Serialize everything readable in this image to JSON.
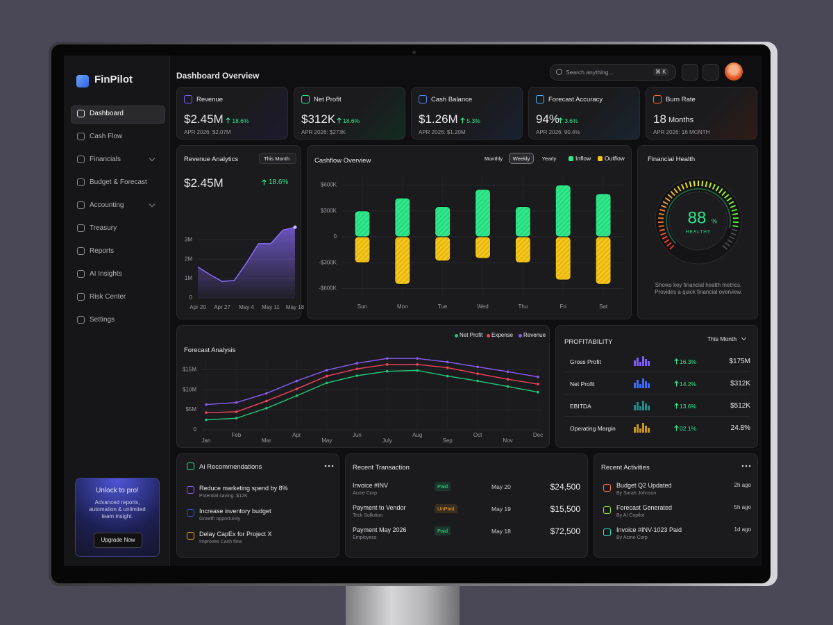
{
  "sidebar": {
    "brand": "FinPilot",
    "nav": [
      "Dashboard",
      "Cash Flow",
      "Financials",
      "Budget & Forecast",
      "Accounting",
      "Treasury",
      "Reports",
      "AI Insights",
      "Risk Center",
      "Settings"
    ],
    "promo": {
      "title": "Unlock to pro!",
      "text": "Advanced reports, automation & unlimited team insight.",
      "button": "Upgrade Now"
    }
  },
  "header": {
    "title": "Dashboard Overview",
    "search": "Search anything...",
    "shortcut": "⌘ K"
  },
  "kpis": [
    {
      "label": "Revenue",
      "value": "$2.45M",
      "change": "18.6%",
      "sub": "APR 2026: $2.07M",
      "color": "#7c5cff"
    },
    {
      "label": "Net Profit",
      "value": "$312K",
      "change": "18.6%",
      "sub": "APR 2026: $273K",
      "color": "#2ee88a"
    },
    {
      "label": "Cash Balance",
      "value": "$1.26M",
      "change": "5.3%",
      "sub": "APR 2026: $1.20M",
      "color": "#4f8cff"
    },
    {
      "label": "Forecast Accuracy",
      "value": "94%",
      "change": "3.6%",
      "sub": "APR 2026: 90.4%",
      "color": "#4fb3ff"
    },
    {
      "label": "Burn Rate",
      "value": "18",
      "unit": "Months",
      "sub": "APR 2026: 16 MONTH",
      "color": "#ff6a3d"
    }
  ],
  "revenue_analytics": {
    "title": "Revenue Analytics",
    "period": "This Month",
    "value": "$2.45M",
    "change": "18.6%",
    "chart": {
      "type": "area",
      "color": "#8b6cff",
      "categories": [
        "Apr 20",
        null,
        "Apr 27",
        null,
        "May 4",
        null,
        "May 11",
        null,
        "May 18"
      ],
      "values": [
        1.6,
        1.2,
        0.85,
        0.9,
        1.8,
        2.8,
        2.8,
        3.5,
        3.65
      ],
      "ylim": [
        0,
        3.8
      ],
      "yticks": [
        0,
        {
          "value": 1,
          "label": "1M"
        },
        {
          "value": 2,
          "label": "2M"
        },
        {
          "value": 3,
          "label": "3M"
        }
      ]
    }
  },
  "cashflow": {
    "title": "Cashflow Overview",
    "tabs": [
      "Monthly",
      "Weekly",
      "Yearly"
    ],
    "active_tab": 1,
    "chart": {
      "type": "bar",
      "categories": [
        "Sun",
        "Mon",
        "Tue",
        "Wed",
        "Thu",
        "Fri",
        "Sat"
      ],
      "series": [
        {
          "name": "Inflow",
          "color": "#2ee88a",
          "values": [
            300,
            450,
            350,
            550,
            350,
            600,
            500
          ]
        },
        {
          "name": "Outflow",
          "color": "#f5c518",
          "values": [
            -300,
            -550,
            -280,
            -250,
            -300,
            -500,
            -550
          ]
        }
      ],
      "ylim": [
        -700,
        700
      ],
      "yticks": [
        {
          "value": 600,
          "label": "$600K"
        },
        {
          "value": 300,
          "label": "$300K"
        },
        0,
        {
          "value": -300,
          "label": "-$300K"
        },
        {
          "value": -600,
          "label": "-$600K"
        }
      ],
      "grid": true
    }
  },
  "health": {
    "title": "Financial Health",
    "score": 88,
    "unit": "%",
    "status": "HEALTHY",
    "lim": [
      0,
      100
    ],
    "description": "Shows key financial health metrics. Provides a quick financial overview."
  },
  "forecast": {
    "title": "Forecast Analysis",
    "chart": {
      "type": "line",
      "categories": [
        "Jan",
        "Feb",
        "Mar",
        "Apr",
        "May",
        "Jun",
        "July",
        "Aug",
        "Sep",
        "Oct",
        "Nov",
        "Dec"
      ],
      "series": [
        {
          "name": "Net Profit",
          "color": "#22c77a",
          "values": [
            2.5,
            2.9,
            5.4,
            8.5,
            11.7,
            13.5,
            14.6,
            14.8,
            13.4,
            12.2,
            10.8,
            9.4
          ]
        },
        {
          "name": "Expense",
          "color": "#f0445a",
          "values": [
            4.3,
            4.5,
            7.2,
            10.2,
            13.4,
            15.2,
            16.3,
            16.3,
            15.5,
            14,
            12.6,
            11.4
          ]
        },
        {
          "name": "Revenue",
          "color": "#8b5cf6",
          "values": [
            6.3,
            6.8,
            9.1,
            12.2,
            14.9,
            16.6,
            17.8,
            17.8,
            16.9,
            15.7,
            14.5,
            13.2
          ]
        }
      ],
      "ylim": [
        0,
        18
      ],
      "yticks": [
        0,
        {
          "value": 5,
          "label": "$5M"
        },
        {
          "value": 10,
          "label": "$10M"
        },
        {
          "value": 15,
          "label": "$15M"
        }
      ],
      "grid": true
    }
  },
  "profitability": {
    "title": "PROFITABILITY",
    "period": "This Month",
    "rows": [
      {
        "name": "Gross Profit",
        "change": "16.3%",
        "value": "$175M",
        "color": "#7c5cff"
      },
      {
        "name": "Net Profit",
        "change": "14.2%",
        "value": "$312K",
        "color": "#3b6cff"
      },
      {
        "name": "EBITDA",
        "change": "13.6%",
        "value": "$512K",
        "color": "#1f8a8a"
      },
      {
        "name": "Operating Margin",
        "change": "02.1%",
        "value": "24.8%",
        "color": "#c9961a"
      }
    ]
  },
  "ai": {
    "title": "Ai Recommendations",
    "items": [
      {
        "title": "Reduce marketing spend by 8%",
        "sub": "Potential saving: $12K",
        "color": "#8b5cf6"
      },
      {
        "title": "Increase inventory budget",
        "sub": "Growth opportunity",
        "color": "#3b4fd8"
      },
      {
        "title": "Delay CapEx for Project X",
        "sub": "Improves Cash flow",
        "color": "#f5a524"
      }
    ]
  },
  "transactions": {
    "title": "Recent Transaction",
    "rows": [
      {
        "name": "Invoice #INV",
        "sub": "Acme Corp",
        "status": "Paid",
        "date": "May 20",
        "amount": "$24,500",
        "color": "#2ee88a"
      },
      {
        "name": "Payment to Vendor",
        "sub": "Teck Sollution",
        "status": "UnPaid",
        "date": "May 19",
        "amount": "$15,500",
        "color": "#f5a524"
      },
      {
        "name": "Payment May 2026",
        "sub": "Employess",
        "status": "Paid",
        "date": "May 18",
        "amount": "$72,500",
        "color": "#2ee88a"
      }
    ]
  },
  "activities": {
    "title": "Recent Activities",
    "items": [
      {
        "title": "Budget Q2 Updated",
        "by": "By Sarah Johnson",
        "time": "2h ago",
        "color": "#ff7a3d"
      },
      {
        "title": "Forecast Generated",
        "by": "By AI Copilot",
        "time": "5h ago",
        "color": "#9be33a"
      },
      {
        "title": "Invoice #INV-1023 Paid",
        "by": "By Acme Corp",
        "time": "1d ago",
        "color": "#2ee8c8"
      }
    ]
  }
}
